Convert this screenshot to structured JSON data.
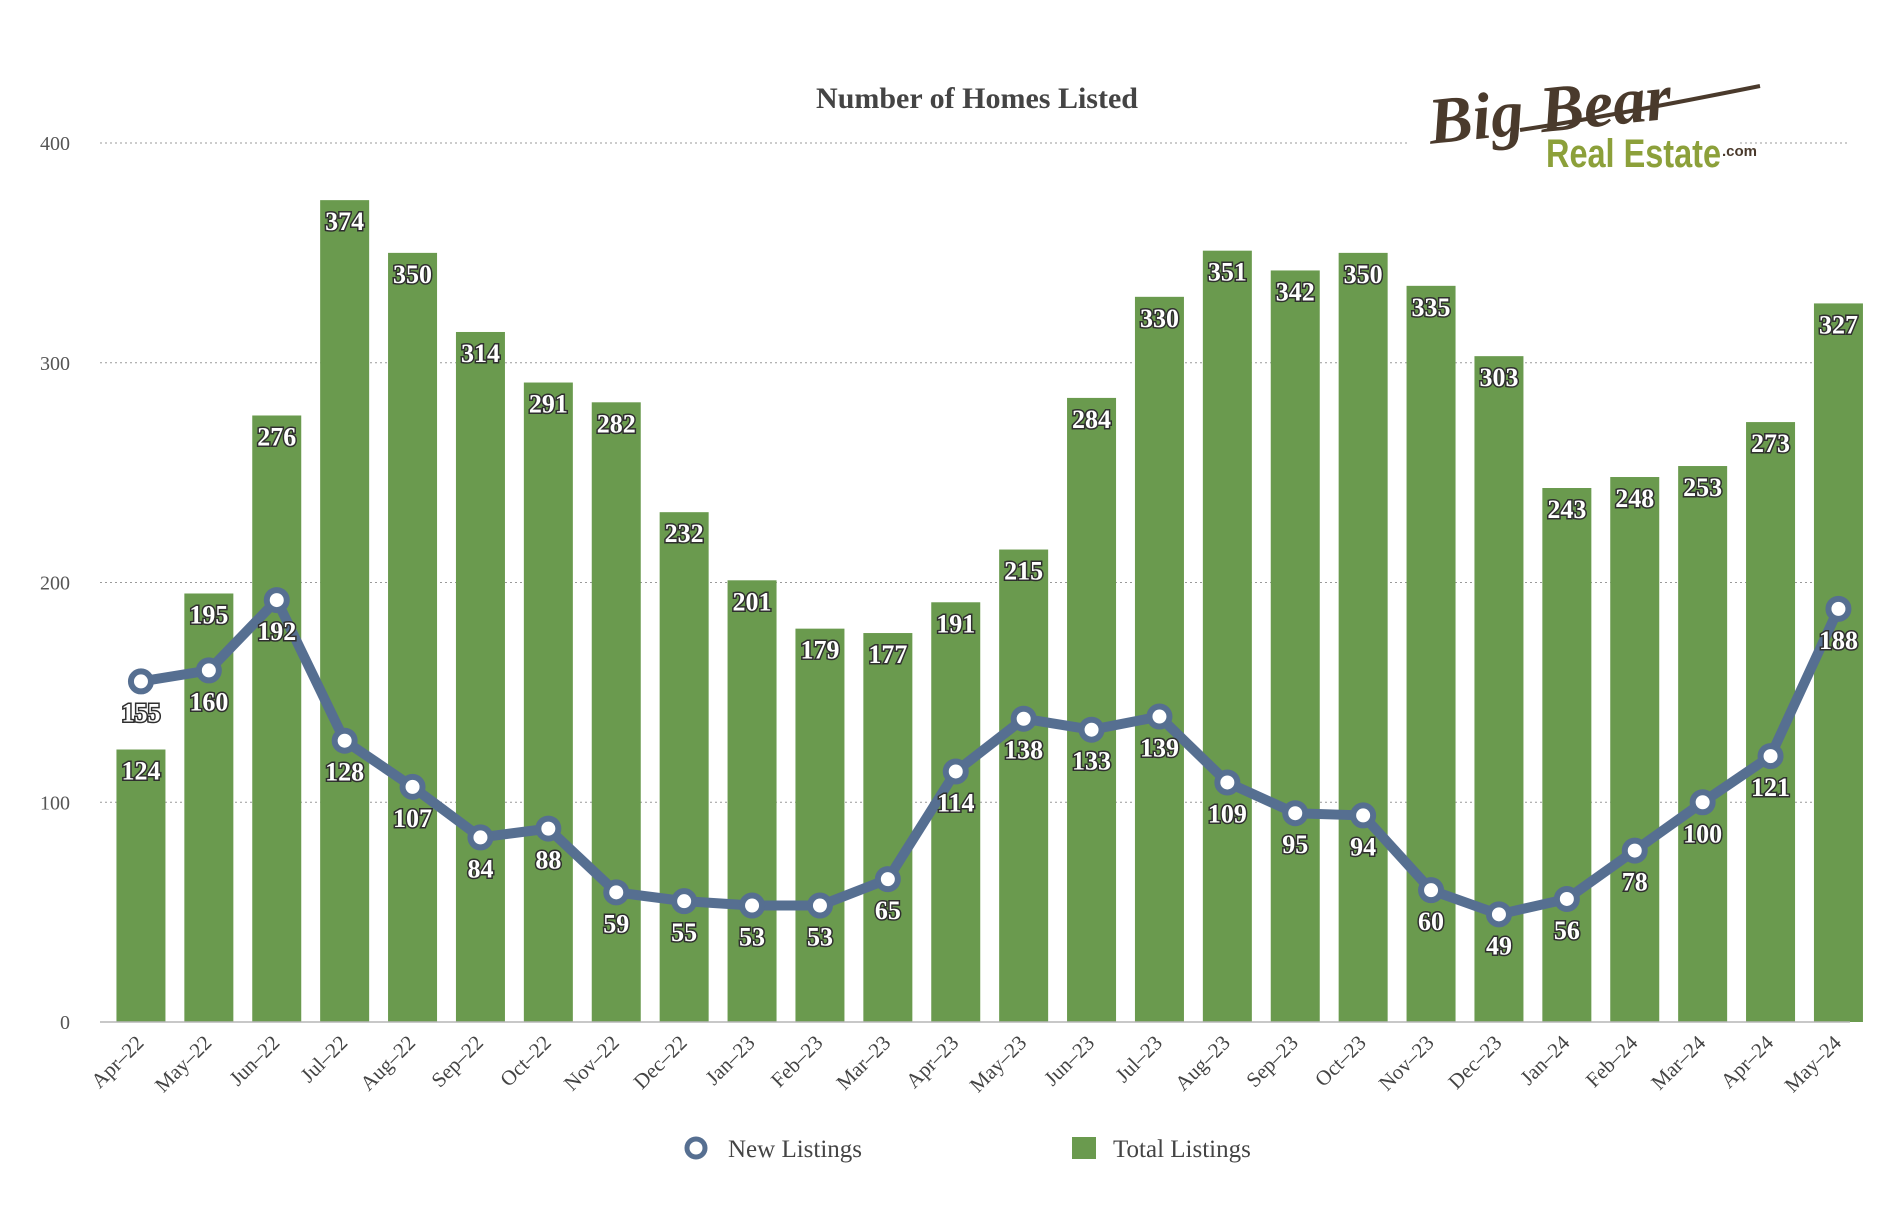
{
  "chart_data": {
    "type": "bar",
    "title": "Number of Homes Listed",
    "categories": [
      "Apr-22",
      "May-22",
      "Jun-22",
      "Jul-22",
      "Aug-22",
      "Sep-22",
      "Oct-22",
      "Nov-22",
      "Dec-22",
      "Jan-23",
      "Feb-23",
      "Mar-23",
      "Apr-23",
      "May-23",
      "Jun-23",
      "Jul-23",
      "Aug-23",
      "Sep-23",
      "Oct-23",
      "Nov-23",
      "Dec-23",
      "Jan-24",
      "Feb-24",
      "Mar-24",
      "Apr-24",
      "May-24"
    ],
    "category_labels": [
      "Apr–22",
      "May–22",
      "Jun–22",
      "Jul–22",
      "Aug–22",
      "Sep–22",
      "Oct–22",
      "Nov–22",
      "Dec–22",
      "Jan–23",
      "Feb–23",
      "Mar–23",
      "Apr–23",
      "May–23",
      "Jun–23",
      "Jul–23",
      "Aug–23",
      "Sep–23",
      "Oct–23",
      "Nov–23",
      "Dec–23",
      "Jan–24",
      "Feb–24",
      "Mar–24",
      "Apr–24",
      "May–24"
    ],
    "series": [
      {
        "name": "Total Listings",
        "type": "bar",
        "color": "#6a9a4e",
        "values": [
          124,
          195,
          276,
          374,
          350,
          314,
          291,
          282,
          232,
          201,
          179,
          177,
          191,
          215,
          284,
          330,
          351,
          342,
          350,
          335,
          303,
          243,
          248,
          253,
          273,
          327
        ]
      },
      {
        "name": "New Listings",
        "type": "line",
        "color": "#566f91",
        "values": [
          155,
          160,
          192,
          128,
          107,
          84,
          88,
          59,
          55,
          53,
          53,
          65,
          114,
          138,
          133,
          139,
          109,
          95,
          94,
          60,
          49,
          56,
          78,
          100,
          121,
          188
        ]
      }
    ],
    "yticks": [
      0,
      100,
      200,
      300,
      400
    ],
    "ylim": [
      0,
      400
    ],
    "xlabel": "",
    "ylabel": "",
    "grid": true,
    "legend_position": "bottom"
  },
  "logo": {
    "script": "Big Bear",
    "sub": "Real Estate",
    "domain": ".com",
    "colors": {
      "script": "#4a3a2c",
      "sub": "#8ca03a"
    }
  }
}
